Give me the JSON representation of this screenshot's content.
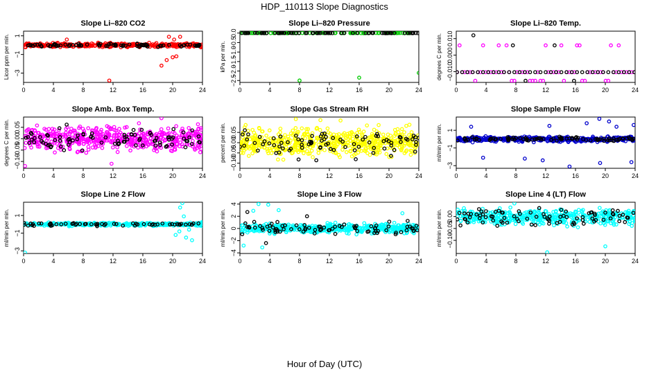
{
  "figure": {
    "title": "HDP_110113  Slope Diagnostics",
    "xlabel": "Hour of Day (UTC)"
  },
  "chart_data": [
    {
      "type": "scatter",
      "title": "Slope Li–820 CO2",
      "ylabel": "Licor ppm per min.",
      "xlim": [
        0,
        24
      ],
      "ylim": [
        -4,
        1.5
      ],
      "xticks": [
        0,
        4,
        8,
        12,
        16,
        20,
        24
      ],
      "yticks": [
        1,
        -1,
        -3
      ],
      "ytick_labels": [
        "1",
        "−1",
        "−3"
      ],
      "series": [
        {
          "name": "main",
          "color": "#ff0000",
          "center": 0,
          "spread": 0.15,
          "count": 330,
          "band": 1,
          "outliers": [
            [
              11.5,
              -3.8
            ],
            [
              18.5,
              -2.2
            ],
            [
              19.2,
              -1.6
            ],
            [
              20.0,
              -1.3
            ],
            [
              20.5,
              -1.2
            ],
            [
              19.5,
              0.9
            ],
            [
              21.0,
              0.9
            ],
            [
              20.2,
              0.6
            ],
            [
              5.8,
              0.6
            ]
          ]
        },
        {
          "name": "subset",
          "color": "#000000",
          "center": 0,
          "spread": 0.12,
          "count": 80,
          "band": 1,
          "outliers": []
        }
      ]
    },
    {
      "type": "scatter",
      "title": "Slope Li–820 Pressure",
      "ylabel": "kPa per min.",
      "xlim": [
        0,
        24
      ],
      "ylim": [
        -2.6,
        0.1
      ],
      "xticks": [
        0,
        4,
        8,
        12,
        16,
        20,
        24
      ],
      "yticks": [
        0,
        -0.5,
        -1,
        -1.5,
        -2,
        -2.5
      ],
      "ytick_labels": [
        "0.0",
        "−0.5",
        "−1.0",
        "−1.5",
        "−2.0",
        "−2.5"
      ],
      "series": [
        {
          "name": "main",
          "color": "#00cc00",
          "center": 0,
          "spread": 0.005,
          "count": 90,
          "band": 1,
          "outliers": [
            [
              8,
              -2.5
            ],
            [
              16,
              -2.35
            ],
            [
              24,
              -2.1
            ]
          ]
        },
        {
          "name": "subset",
          "color": "#000000",
          "center": 0,
          "spread": 0.005,
          "count": 70,
          "band": 1,
          "outliers": []
        }
      ]
    },
    {
      "type": "scatter",
      "title": "Slope Li–820 Temp.",
      "ylabel": "degrees C per min.",
      "xlim": [
        0,
        24
      ],
      "ylim": [
        -0.0165,
        0.0145
      ],
      "xticks": [
        0,
        4,
        8,
        12,
        16,
        20,
        24
      ],
      "yticks": [
        0.01,
        0,
        -0.01
      ],
      "ytick_labels": [
        "0.010",
        "0.000",
        "−0.010"
      ],
      "series": [
        {
          "name": "main",
          "color": "#ff00ff",
          "levels": [
            -0.0103,
            0.0059,
            -0.0155
          ],
          "level_probs": [
            0.7,
            0.85
          ],
          "xstep": 0.35,
          "outliers": []
        },
        {
          "name": "subset",
          "color": "#000000",
          "levels": [
            -0.0103
          ],
          "level_probs": [
            1
          ],
          "xstep": 0.7,
          "outliers": [
            [
              2.3,
              0.012
            ],
            [
              7.6,
              0.0059
            ],
            [
              9.3,
              -0.0155
            ],
            [
              13.2,
              0.0059
            ],
            [
              15.8,
              -0.0155
            ]
          ]
        }
      ]
    },
    {
      "type": "scatter",
      "title": "Slope Amb. Box Temp.",
      "ylabel": "degrees C per min.",
      "xlim": [
        0,
        24
      ],
      "ylim": [
        -0.13,
        0.095
      ],
      "xticks": [
        0,
        4,
        8,
        12,
        16,
        20,
        24
      ],
      "yticks": [
        0.05,
        0,
        -0.05,
        -0.1
      ],
      "ytick_labels": [
        "0.05",
        "0.00",
        "−0.05",
        "−0.10"
      ],
      "series": [
        {
          "name": "main",
          "color": "#ff00ff",
          "center": 0,
          "spread": 0.035,
          "count": 520,
          "band": 0,
          "outliers": [
            [
              0.2,
              -0.12
            ],
            [
              18.5,
              0.09
            ],
            [
              11.8,
              -0.11
            ]
          ]
        },
        {
          "name": "subset",
          "color": "#000000",
          "center": 0,
          "spread": 0.032,
          "count": 90,
          "band": 0,
          "outliers": []
        }
      ]
    },
    {
      "type": "scatter",
      "title": "Slope Gas Stream RH",
      "ylabel": "percent per min.",
      "xlim": [
        0,
        24
      ],
      "ylim": [
        -0.125,
        0.125
      ],
      "xticks": [
        0,
        4,
        8,
        12,
        16,
        20,
        24
      ],
      "yticks": [
        0.05,
        0,
        -0.05,
        -0.1
      ],
      "ytick_labels": [
        "0.05",
        "0.00",
        "−0.05",
        "−0.10"
      ],
      "series": [
        {
          "name": "main",
          "color": "#ffff00",
          "center": 0,
          "spread": 0.045,
          "count": 560,
          "band": 0,
          "outliers": [
            [
              7.5,
              0.115
            ],
            [
              10.8,
              0.11
            ],
            [
              13.5,
              0.108
            ]
          ]
        },
        {
          "name": "subset",
          "color": "#000000",
          "center": 0,
          "spread": 0.045,
          "count": 85,
          "band": 0,
          "outliers": []
        }
      ]
    },
    {
      "type": "scatter",
      "title": "Slope Sample Flow",
      "ylabel": "ml/min per min.",
      "xlim": [
        0,
        24
      ],
      "ylim": [
        -3.3,
        2.5
      ],
      "xticks": [
        0,
        4,
        8,
        12,
        16,
        20,
        24
      ],
      "yticks": [
        1,
        -1,
        -3
      ],
      "ytick_labels": [
        "1",
        "−1",
        "−3"
      ],
      "series": [
        {
          "name": "main",
          "color": "#0000cc",
          "center": 0,
          "spread": 0.2,
          "count": 420,
          "band": 1,
          "outliers": [
            [
              19.2,
              2.3
            ],
            [
              20.5,
              2.0
            ],
            [
              17.5,
              1.8
            ],
            [
              23.8,
              1.6
            ],
            [
              15.2,
              -3.1
            ],
            [
              23.5,
              -2.6
            ],
            [
              11.6,
              -2.4
            ],
            [
              9.2,
              -2.2
            ],
            [
              3.6,
              -2.1
            ],
            [
              19.3,
              -2.7
            ],
            [
              2.0,
              1.4
            ],
            [
              12.5,
              1.5
            ],
            [
              21.5,
              1.4
            ]
          ]
        },
        {
          "name": "subset",
          "color": "#000000",
          "center": 0,
          "spread": 0.15,
          "count": 85,
          "band": 1,
          "outliers": []
        }
      ]
    },
    {
      "type": "scatter",
      "title": "Slope Line 2 Flow",
      "ylabel": "ml/min per min.",
      "xlim": [
        0,
        24
      ],
      "ylim": [
        -3.3,
        2.5
      ],
      "xticks": [
        0,
        4,
        8,
        12,
        16,
        20,
        24
      ],
      "yticks": [
        1,
        -1,
        -3
      ],
      "ytick_labels": [
        "1",
        "−1",
        "−3"
      ],
      "series": [
        {
          "name": "main",
          "color": "#00ffff",
          "center": 0,
          "spread": 0.12,
          "count": 330,
          "band": 1,
          "outliers": [
            [
              21.3,
              2.4
            ],
            [
              21.0,
              1.9
            ],
            [
              20.4,
              -1.2
            ],
            [
              21.8,
              -1.5
            ],
            [
              22.6,
              -1.8
            ],
            [
              20.9,
              -0.8
            ],
            [
              21.5,
              0.9
            ],
            [
              22.2,
              -0.6
            ],
            [
              0.2,
              -3.2
            ]
          ]
        },
        {
          "name": "subset",
          "color": "#000000",
          "center": 0,
          "spread": 0.1,
          "count": 60,
          "band": 1,
          "outliers": []
        }
      ]
    },
    {
      "type": "scatter",
      "title": "Slope Line 3 Flow",
      "ylabel": "ml/min per min.",
      "xlim": [
        0,
        24
      ],
      "ylim": [
        -4.1,
        4.3
      ],
      "xticks": [
        0,
        4,
        8,
        12,
        16,
        20,
        24
      ],
      "yticks": [
        4,
        2,
        0,
        -2,
        -4
      ],
      "ytick_labels": [
        "4",
        "2",
        "0",
        "−2",
        "−4"
      ],
      "series": [
        {
          "name": "main",
          "color": "#00ffff",
          "center": 0,
          "spread": 0.55,
          "count": 460,
          "band": 1,
          "outliers": [
            [
              2.5,
              4.0
            ],
            [
              3.8,
              3.9
            ],
            [
              1.8,
              2.9
            ],
            [
              3.0,
              -3.1
            ],
            [
              0.5,
              -2.8
            ],
            [
              5.2,
              3.0
            ],
            [
              21.8,
              2.5
            ]
          ]
        },
        {
          "name": "subset",
          "color": "#000000",
          "center": 0,
          "spread": 0.6,
          "count": 80,
          "band": 1,
          "outliers": [
            [
              1.0,
              2.7
            ],
            [
              3.5,
              -2.4
            ],
            [
              9.0,
              2.0
            ]
          ]
        }
      ]
    },
    {
      "type": "scatter",
      "title": "Slope Line 4 (LT) Flow",
      "ylabel": "ml/min per min.",
      "xlim": [
        0,
        24
      ],
      "ylim": [
        -0.155,
        0.06
      ],
      "xticks": [
        0,
        4,
        8,
        12,
        16,
        20,
        24
      ],
      "yticks": [
        0,
        -0.05,
        -0.1
      ],
      "ytick_labels": [
        "0.00",
        "−0.05",
        "−0.10"
      ],
      "series": [
        {
          "name": "main",
          "color": "#00ffff",
          "center": 0,
          "spread": 0.022,
          "count": 430,
          "band": 1,
          "outliers": [
            [
              12.2,
              -0.15
            ],
            [
              20.0,
              -0.125
            ],
            [
              7.8,
              0.055
            ]
          ]
        },
        {
          "name": "subset",
          "color": "#000000",
          "center": 0,
          "spread": 0.022,
          "count": 85,
          "band": 1,
          "outliers": []
        }
      ]
    }
  ]
}
